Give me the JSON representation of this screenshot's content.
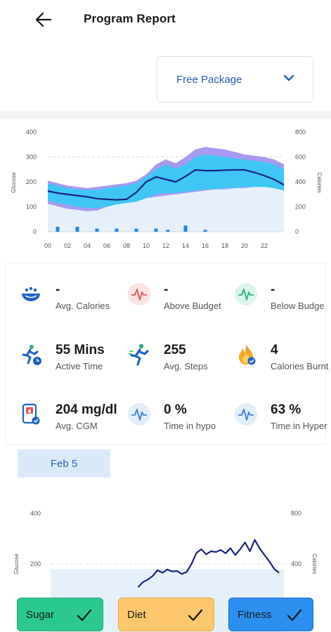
{
  "header": {
    "title": "Program Report",
    "back_icon": "arrow-left-icon"
  },
  "package": {
    "label": "Free Package",
    "icon": "chevron-down-icon"
  },
  "chart_data": [
    {
      "type": "area",
      "ylabel": "Glucose",
      "y2label": "Calories",
      "ylim": [
        0,
        400
      ],
      "y2lim": [
        0,
        800
      ],
      "yticks": [
        "0",
        "100",
        "200",
        "300",
        "400"
      ],
      "y2ticks": [
        "0",
        "200",
        "400",
        "600",
        "800"
      ],
      "xticks": [
        "00",
        "02",
        "04",
        "06",
        "08",
        "10",
        "12",
        "14",
        "16",
        "18",
        "20",
        "22"
      ],
      "reference_line": 300,
      "series": [
        {
          "x": [
            0,
            1,
            2,
            3,
            4,
            5,
            6,
            7,
            8,
            9,
            10,
            11,
            12,
            13,
            14,
            15,
            16,
            17,
            18,
            19,
            20,
            21,
            22,
            23,
            24
          ],
          "values": [
            163,
            155,
            150,
            145,
            140,
            133,
            130,
            128,
            130,
            158,
            200,
            220,
            210,
            200,
            222,
            248,
            245,
            245,
            247,
            248,
            248,
            238,
            225,
            210,
            188
          ]
        }
      ],
      "band_outer_low": [
        112,
        102,
        92,
        88,
        82,
        85,
        100,
        115,
        120,
        125,
        135,
        140,
        145,
        150,
        155,
        160,
        165,
        170,
        170,
        175,
        175,
        180,
        180,
        180,
        175
      ],
      "band_outer_high": [
        205,
        195,
        185,
        180,
        175,
        180,
        185,
        190,
        195,
        205,
        230,
        270,
        290,
        275,
        300,
        330,
        340,
        335,
        330,
        320,
        310,
        305,
        300,
        290,
        270
      ],
      "band_inner_low": [
        125,
        115,
        108,
        100,
        95,
        95,
        100,
        110,
        115,
        120,
        135,
        150,
        155,
        155,
        160,
        165,
        170,
        170,
        175,
        175,
        180,
        180,
        180,
        175,
        165
      ],
      "band_inner_high": [
        195,
        185,
        175,
        170,
        168,
        168,
        175,
        180,
        185,
        195,
        220,
        250,
        270,
        255,
        270,
        300,
        310,
        305,
        300,
        295,
        290,
        285,
        280,
        270,
        250
      ],
      "baseline": [
        175,
        175,
        175,
        175,
        175,
        175,
        175,
        175,
        175,
        175,
        175,
        175,
        175,
        175,
        175,
        175,
        175,
        175,
        175,
        180,
        180,
        180,
        180,
        185,
        185
      ],
      "calorie_bars": [
        {
          "x": 1,
          "value": 40
        },
        {
          "x": 3,
          "value": 40
        },
        {
          "x": 5,
          "value": 25
        },
        {
          "x": 7,
          "value": 25
        },
        {
          "x": 9,
          "value": 25
        },
        {
          "x": 11,
          "value": 25
        },
        {
          "x": 12.2,
          "value": 15
        },
        {
          "x": 14,
          "value": 50
        },
        {
          "x": 16,
          "value": 15
        }
      ]
    },
    {
      "type": "line",
      "ylabel": "Glucose",
      "y2label": "Calories",
      "ylim": [
        0,
        400
      ],
      "y2lim": [
        0,
        800
      ],
      "yticks": [
        "200",
        "400"
      ],
      "y2ticks": [
        "400",
        "800"
      ],
      "reference_line": 200,
      "band_high": 180,
      "series": [
        {
          "x": [
            9,
            9.5,
            10,
            10.5,
            11,
            11.5,
            12,
            12.5,
            13,
            13.5,
            14,
            14.5,
            15,
            15.5,
            16,
            16.5,
            17,
            17.5,
            18,
            18.5,
            19,
            19.5,
            20,
            20.5,
            21,
            21.5,
            22,
            22.5,
            23,
            23.5
          ],
          "values": [
            108,
            128,
            138,
            152,
            175,
            165,
            178,
            170,
            172,
            160,
            168,
            200,
            243,
            258,
            238,
            250,
            247,
            255,
            242,
            262,
            235,
            258,
            285,
            250,
            295,
            262,
            235,
            210,
            180,
            165
          ]
        }
      ]
    }
  ],
  "stats": [
    {
      "id": "avg-calories",
      "value": "-",
      "label": "Avg. Calories",
      "icon": "food-bowl-icon"
    },
    {
      "id": "above-budget",
      "value": "-",
      "label": "Above Budget",
      "icon": "pulse-red-icon"
    },
    {
      "id": "below-budget",
      "value": "-",
      "label": "Below Budge",
      "icon": "pulse-green-icon"
    },
    {
      "id": "active-time",
      "value": "55 Mins",
      "label": "Active Time",
      "icon": "running-clock-icon"
    },
    {
      "id": "avg-steps",
      "value": "255",
      "label": "Avg. Steps",
      "icon": "running-icon"
    },
    {
      "id": "calories-burnt",
      "value": "4",
      "label": "Calories Burnt",
      "icon": "flame-icon"
    },
    {
      "id": "avg-cgm",
      "value": "204 mg/dl",
      "label": "Avg. CGM",
      "icon": "glucose-meter-icon"
    },
    {
      "id": "time-hypo",
      "value": "0 %",
      "label": "Time in hypo",
      "icon": "pulse-blue-icon"
    },
    {
      "id": "time-hyper",
      "value": "63 %",
      "label": "Time in Hyper",
      "icon": "pulse-blue-icon"
    }
  ],
  "date_tab": {
    "label": "Feb 5"
  },
  "filters": [
    {
      "label": "Sugar",
      "icon": "check-icon"
    },
    {
      "label": "Diet",
      "icon": "check-icon"
    },
    {
      "label": "Fitness",
      "icon": "check-icon"
    }
  ],
  "colors": {
    "accent": "#1f5fa8",
    "line": "#1a237e",
    "band_outer": "#a999f0",
    "band_inner": "#3ec7f5",
    "baseline_fill": "#e6f0fb",
    "bars": "#1e88e5",
    "sugar": "#2cc98e",
    "diet": "#fdc86d",
    "fitness": "#2b8ff0"
  }
}
